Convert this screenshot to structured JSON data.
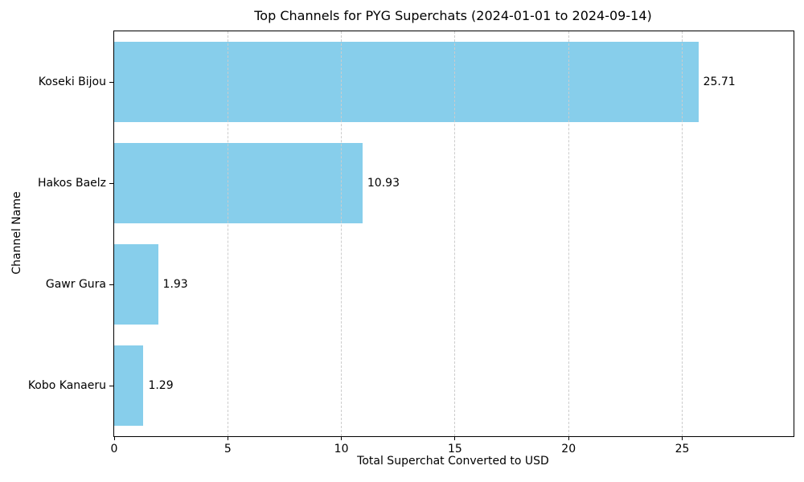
{
  "chart_data": {
    "type": "bar",
    "orientation": "horizontal",
    "title": "Top Channels for PYG Superchats (2024-01-01 to 2024-09-14)",
    "xlabel": "Total Superchat Converted to USD",
    "ylabel": "Channel Name",
    "categories": [
      "Koseki Bijou",
      "Hakos Baelz",
      "Gawr Gura",
      "Kobo Kanaeru"
    ],
    "values": [
      25.71,
      10.93,
      1.93,
      1.29
    ],
    "value_labels": [
      "25.71",
      "10.93",
      "1.93",
      "1.29"
    ],
    "xticks": [
      0,
      5,
      10,
      15,
      20,
      25
    ],
    "xtick_labels": [
      "0",
      "5",
      "10",
      "15",
      "20",
      "25"
    ],
    "xlim": [
      0,
      29.9
    ],
    "bar_height_fraction": 0.8,
    "grid": "vertical-dashed",
    "grid_on_top_of_bars": true,
    "legend": "none",
    "bar_color": "#87CEEB",
    "grid_color": "#cccccc",
    "spine_color": "#000000",
    "text_color": "#000000",
    "background_color": "#ffffff"
  }
}
